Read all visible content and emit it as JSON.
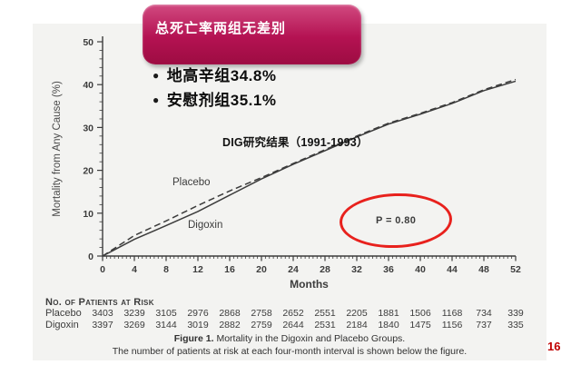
{
  "page_number": "16",
  "banner": {
    "title": "总死亡率两组无差别",
    "bg_top": "#d14a80",
    "bg_mid": "#b41252",
    "bg_bottom": "#9d0c42"
  },
  "bullets": [
    "地高辛组34.8%",
    "安慰剂组35.1%"
  ],
  "annotations": {
    "study_note": "DIG研究结果（1991-1993）",
    "p_value": "P = 0.80",
    "ellipse_color": "#e8211d"
  },
  "chart_data": {
    "type": "line",
    "title": "Mortality in the Digoxin and Placebo Groups",
    "xlabel": "Months",
    "ylabel": "Mortality from Any Cause (%)",
    "xlim": [
      0,
      52
    ],
    "ylim": [
      0,
      50
    ],
    "x_major_ticks": [
      0,
      4,
      8,
      12,
      16,
      20,
      24,
      28,
      32,
      36,
      40,
      44,
      48,
      52
    ],
    "y_major_ticks": [
      0,
      10,
      20,
      30,
      40,
      50
    ],
    "x_minor_step": 0.5,
    "y_minor_step": 2,
    "grid": false,
    "legend_position": "inline-labels",
    "line_color": "#3c3c3c",
    "x": [
      0,
      4,
      8,
      12,
      16,
      20,
      24,
      28,
      32,
      36,
      40,
      44,
      48,
      52
    ],
    "series": [
      {
        "name": "Placebo",
        "style": "dashed",
        "values": [
          0,
          4.8,
          8.2,
          11.8,
          15.2,
          18.3,
          21.6,
          24.8,
          28.0,
          31.0,
          33.3,
          35.8,
          38.8,
          41.2
        ]
      },
      {
        "name": "Digoxin",
        "style": "solid",
        "values": [
          0,
          3.9,
          7.1,
          10.4,
          14.2,
          18.0,
          21.4,
          24.6,
          27.8,
          30.8,
          33.1,
          35.6,
          38.6,
          40.8
        ]
      }
    ]
  },
  "risk_table": {
    "heading": "No. of Patients at Risk",
    "rows": [
      {
        "label": "Placebo",
        "values": [
          "3403",
          "3239",
          "3105",
          "2976",
          "2868",
          "2758",
          "2652",
          "2551",
          "2205",
          "1881",
          "1506",
          "1168",
          "734",
          "339"
        ]
      },
      {
        "label": "Digoxin",
        "values": [
          "3397",
          "3269",
          "3144",
          "3019",
          "2882",
          "2759",
          "2644",
          "2531",
          "2184",
          "1840",
          "1475",
          "1156",
          "737",
          "335"
        ]
      }
    ]
  },
  "caption": {
    "line1_bold": "Figure 1.",
    "line1_rest": " Mortality in the Digoxin and Placebo Groups.",
    "line2": "The number of patients at risk at each four-month interval is shown below the figure."
  }
}
